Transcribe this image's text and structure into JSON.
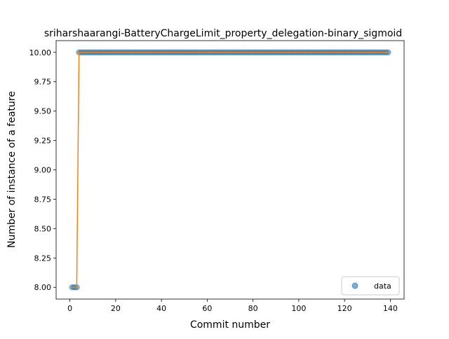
{
  "chart_data": {
    "type": "scatter",
    "title": "sriharshaarangi-BatteryChargeLimit_property_delegation-binary_sigmoid",
    "xlabel": "Commit number",
    "ylabel": "Number of instance of a feature",
    "xlim": [
      -6,
      146
    ],
    "ylim": [
      7.9,
      10.1
    ],
    "xticks": [
      0,
      20,
      40,
      60,
      80,
      100,
      120,
      140
    ],
    "yticks": [
      8.0,
      8.25,
      8.5,
      8.75,
      9.0,
      9.25,
      9.5,
      9.75,
      10.0
    ],
    "xtick_labels": [
      "0",
      "20",
      "40",
      "60",
      "80",
      "100",
      "120",
      "140"
    ],
    "ytick_labels": [
      "8.00",
      "8.25",
      "8.50",
      "8.75",
      "9.00",
      "9.25",
      "9.50",
      "9.75",
      "10.00"
    ],
    "grid": false,
    "legend": {
      "position": "lower-right",
      "entries": [
        "data"
      ]
    },
    "colors": {
      "data": "#1f77b4",
      "fit": "#ff7f0e"
    },
    "series": [
      {
        "name": "data",
        "kind": "scatter",
        "x_range": [
          1,
          139
        ],
        "points": [
          [
            1,
            8.0
          ],
          [
            2,
            8.0
          ],
          [
            3,
            8.0
          ],
          [
            4,
            10.0
          ]
        ],
        "tail": {
          "from_x": 5,
          "to_x": 139,
          "y": 10.0
        }
      },
      {
        "kind": "line",
        "x": [
          1,
          2,
          3,
          4,
          139
        ],
        "y": [
          8.0,
          8.0,
          8.0,
          10.0,
          10.0
        ]
      }
    ]
  }
}
